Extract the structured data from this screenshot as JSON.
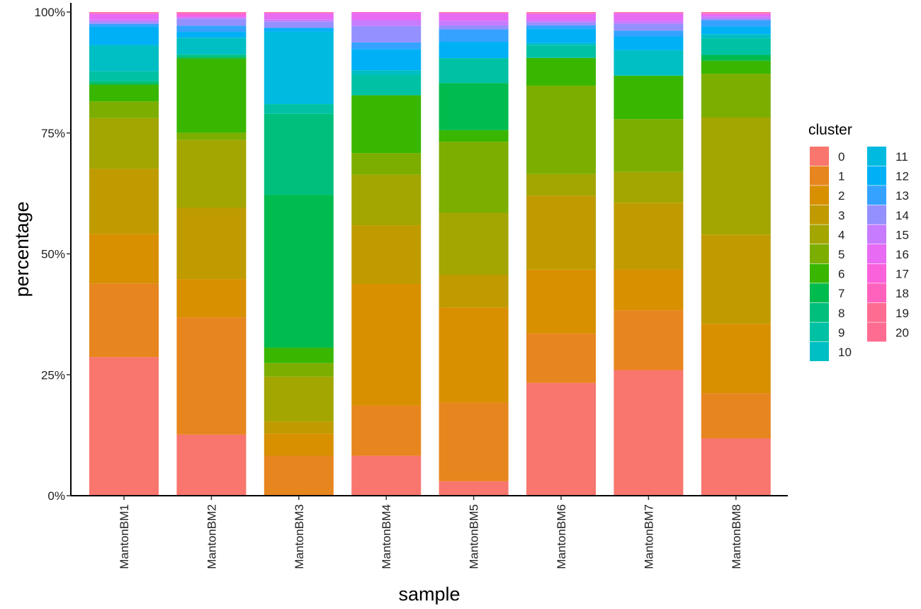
{
  "chart_data": {
    "type": "bar",
    "stacked": true,
    "normalized": true,
    "xlabel": "sample",
    "ylabel": "percentage",
    "ylim": [
      0,
      100
    ],
    "y_ticks": [
      "0%",
      "25%",
      "50%",
      "75%",
      "100%"
    ],
    "y_tick_values": [
      0,
      25,
      50,
      75,
      100
    ],
    "categories": [
      "MantonBM1",
      "MantonBM2",
      "MantonBM3",
      "MantonBM4",
      "MantonBM5",
      "MantonBM6",
      "MantonBM7",
      "MantonBM8"
    ],
    "legend": {
      "title": "cluster",
      "position": "right",
      "columns": 2
    },
    "grid": false,
    "series": [
      {
        "name": "0",
        "color": "#F8766D",
        "values": [
          29.0,
          12.6,
          0.0,
          8.3,
          3.0,
          23.6,
          25.7,
          11.9
        ]
      },
      {
        "name": "1",
        "color": "#E7851E",
        "values": [
          15.4,
          24.2,
          8.3,
          10.4,
          16.4,
          10.3,
          12.2,
          9.4
        ]
      },
      {
        "name": "2",
        "color": "#D89000",
        "values": [
          10.4,
          7.9,
          4.6,
          25.3,
          19.8,
          13.4,
          8.3,
          14.4
        ]
      },
      {
        "name": "3",
        "color": "#C09B00",
        "values": [
          13.6,
          14.7,
          2.5,
          12.2,
          6.8,
          15.5,
          13.7,
          18.5
        ]
      },
      {
        "name": "4",
        "color": "#A3A500",
        "values": [
          10.6,
          14.0,
          9.3,
          10.5,
          12.9,
          4.5,
          6.3,
          24.3
        ]
      },
      {
        "name": "5",
        "color": "#7CAE00",
        "values": [
          3.5,
          1.5,
          2.8,
          4.5,
          14.8,
          18.5,
          10.8,
          9.1
        ]
      },
      {
        "name": "6",
        "color": "#39B600",
        "values": [
          3.5,
          15.3,
          3.2,
          12.0,
          2.4,
          5.8,
          8.9,
          2.7
        ]
      },
      {
        "name": "7",
        "color": "#00BB4E",
        "values": [
          0.3,
          0.3,
          31.7,
          0.0,
          9.8,
          0.0,
          0.0,
          1.2
        ]
      },
      {
        "name": "8",
        "color": "#00BF7D",
        "values": [
          0.5,
          0.5,
          16.8,
          0.0,
          0.0,
          0.0,
          0.0,
          0.0
        ]
      },
      {
        "name": "9",
        "color": "#00C1A3",
        "values": [
          2.0,
          0.0,
          2.0,
          4.2,
          5.2,
          2.6,
          0.0,
          3.4
        ]
      },
      {
        "name": "10",
        "color": "#00BFC4",
        "values": [
          5.5,
          3.5,
          0.0,
          1.0,
          0.0,
          0.5,
          5.2,
          0.9
        ]
      },
      {
        "name": "11",
        "color": "#00BAE0",
        "values": [
          0.0,
          0.0,
          15.0,
          0.0,
          0.0,
          0.0,
          0.0,
          0.0
        ]
      },
      {
        "name": "12",
        "color": "#00B0F6",
        "values": [
          3.8,
          1.2,
          0.8,
          4.4,
          3.4,
          3.0,
          2.8,
          1.6
        ]
      },
      {
        "name": "13",
        "color": "#35A2FF",
        "values": [
          0.6,
          1.3,
          0.0,
          1.4,
          2.6,
          0.7,
          1.2,
          1.3
        ]
      },
      {
        "name": "14",
        "color": "#9590FF",
        "values": [
          0.4,
          1.4,
          1.3,
          3.4,
          0.8,
          0.6,
          1.4,
          0.3
        ]
      },
      {
        "name": "15",
        "color": "#C77CFF",
        "values": [
          0.5,
          0.2,
          0.5,
          1.2,
          1.0,
          0.5,
          0.6,
          0.5
        ]
      },
      {
        "name": "16",
        "color": "#E76BF3",
        "values": [
          1.2,
          0.4,
          1.2,
          1.5,
          1.5,
          1.3,
          1.5,
          0.5
        ]
      },
      {
        "name": "17",
        "color": "#FA62DB",
        "values": [
          0.1,
          0.5,
          0.1,
          0.2,
          0.1,
          0.1,
          0.1,
          0.1
        ]
      },
      {
        "name": "18",
        "color": "#FF62BC",
        "values": [
          0.1,
          0.1,
          0.1,
          0.0,
          0.1,
          0.1,
          0.1,
          0.1
        ]
      },
      {
        "name": "19",
        "color": "#FF6C91",
        "values": [
          0.1,
          0.1,
          0.1,
          0.0,
          0.1,
          0.1,
          0.1,
          0.1
        ]
      },
      {
        "name": "20",
        "color": "#FF6C91",
        "values": [
          0.1,
          0.1,
          0.0,
          0.0,
          0.0,
          0.1,
          0.0,
          0.1
        ]
      }
    ]
  }
}
